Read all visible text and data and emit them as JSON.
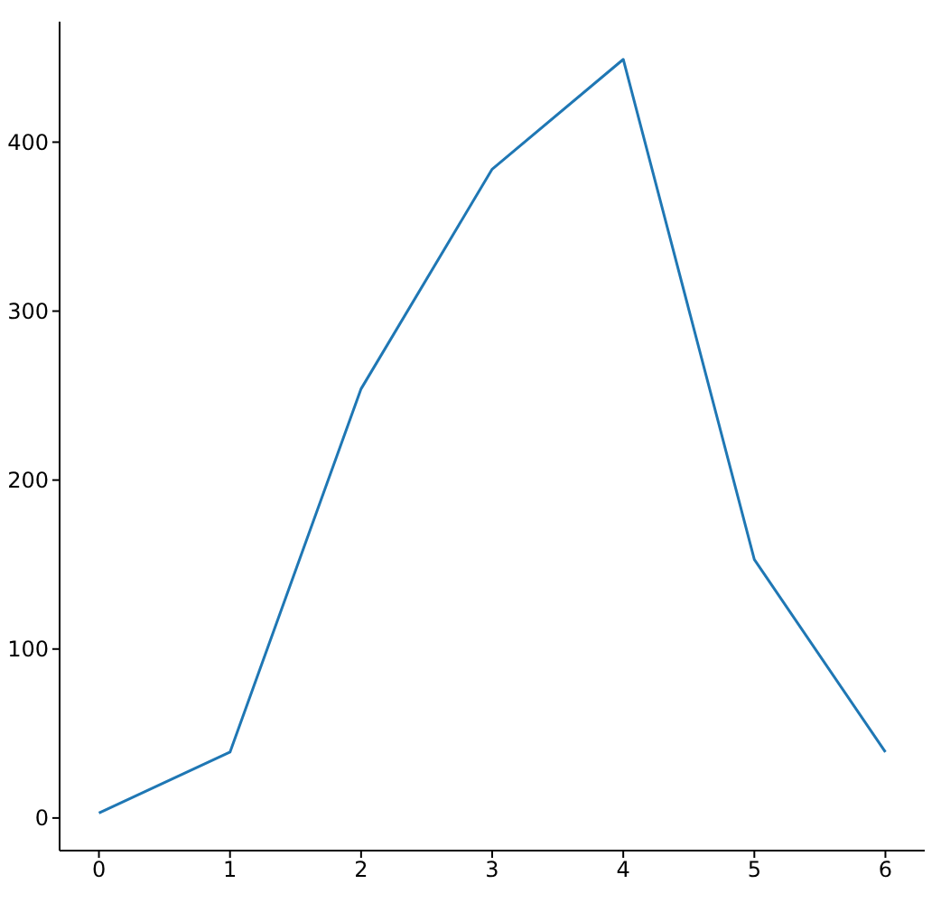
{
  "chart_data": {
    "type": "line",
    "x": [
      0,
      1,
      2,
      3,
      4,
      5,
      6
    ],
    "series": [
      {
        "color": "#1f77b4",
        "values": [
          3,
          39,
          254,
          384,
          449,
          153,
          39
        ]
      }
    ],
    "xlim": [
      -0.3,
      6.3
    ],
    "ylim": [
      -19.3,
      471.3
    ],
    "xticks": [
      0,
      1,
      2,
      3,
      4,
      5,
      6
    ],
    "yticks": [
      0,
      100,
      200,
      300,
      400
    ],
    "grid": false,
    "legend": false,
    "marker": "none",
    "line_style": "solid"
  }
}
